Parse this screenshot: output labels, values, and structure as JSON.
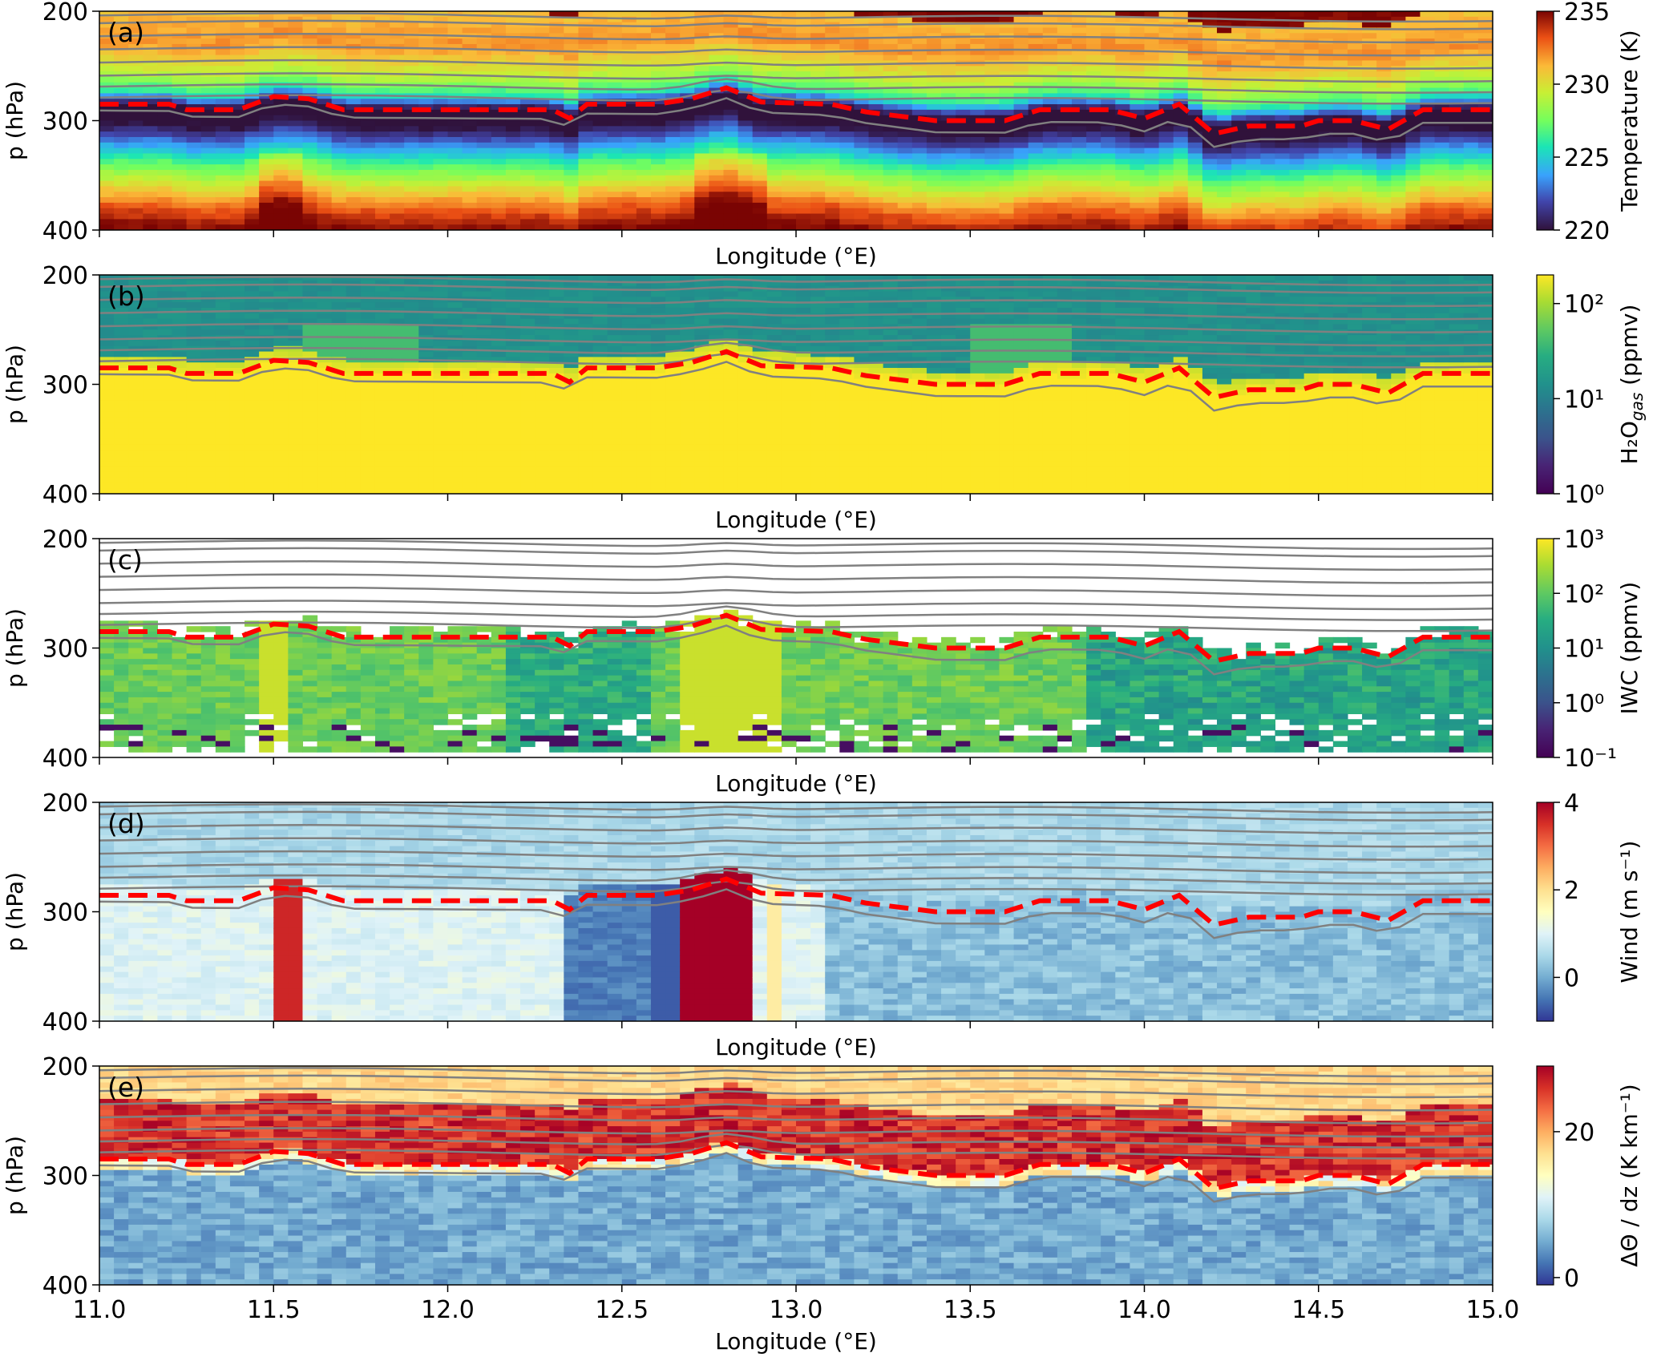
{
  "figure": {
    "xlabel": "Longitude (°E)",
    "ylabel": "p (hPa)",
    "x_ticks": [
      11.0,
      11.5,
      12.0,
      12.5,
      13.0,
      13.5,
      14.0,
      14.5,
      15.0
    ],
    "x_tick_labels": [
      "11.0",
      "11.5",
      "12.0",
      "12.5",
      "13.0",
      "13.5",
      "14.0",
      "14.5",
      "15.0"
    ],
    "y_ticks": [
      200,
      300,
      400
    ],
    "y_tick_labels": [
      "200",
      "300",
      "400"
    ]
  },
  "chart_data": [
    {
      "type": "heatmap",
      "panel_label": "(a)",
      "colorbar_label": "Temperature (K)",
      "colormap": "turbo",
      "colorbar_ticks": [
        "220",
        "225",
        "230",
        "235"
      ],
      "colorbar_tick_values": [
        220,
        225,
        230,
        235
      ],
      "colorbar_range": [
        220,
        235
      ],
      "colorbar_scale": "linear",
      "xlim": [
        11.0,
        15.0
      ],
      "ylim": [
        400,
        200
      ],
      "field_profile": [
        [
          200,
          231
        ],
        [
          230,
          232
        ],
        [
          260,
          229
        ],
        [
          275,
          226
        ],
        [
          285,
          221
        ],
        [
          292,
          219
        ],
        [
          305,
          220
        ],
        [
          320,
          223
        ],
        [
          340,
          227
        ],
        [
          360,
          230
        ],
        [
          380,
          233
        ],
        [
          400,
          235
        ]
      ]
    },
    {
      "type": "heatmap",
      "panel_label": "(b)",
      "colorbar_label": "H₂O",
      "colorbar_label_subscript": "gas",
      "colorbar_label_unit": "(ppmv)",
      "colormap": "viridis",
      "colorbar_ticks": [
        "10⁰",
        "10¹",
        "10²"
      ],
      "colorbar_tick_values": [
        1,
        10,
        100
      ],
      "colorbar_range": [
        1,
        200
      ],
      "colorbar_scale": "log",
      "xlim": [
        11.0,
        15.0
      ],
      "ylim": [
        400,
        200
      ]
    },
    {
      "type": "heatmap",
      "panel_label": "(c)",
      "colorbar_label": "IWC (ppmv)",
      "colormap": "viridis",
      "colorbar_ticks": [
        "10⁻¹",
        "10⁰",
        "10¹",
        "10²",
        "10³"
      ],
      "colorbar_tick_values": [
        0.1,
        1,
        10,
        100,
        1000
      ],
      "colorbar_range": [
        0.1,
        1000
      ],
      "colorbar_scale": "log",
      "xlim": [
        11.0,
        15.0
      ],
      "ylim": [
        400,
        200
      ]
    },
    {
      "type": "heatmap",
      "panel_label": "(d)",
      "colorbar_label": "Wind (m s⁻¹)",
      "colormap": "RdYlBu_r",
      "colorbar_ticks": [
        "0",
        "2",
        "4"
      ],
      "colorbar_tick_values": [
        0,
        2,
        4
      ],
      "colorbar_range": [
        -1,
        4
      ],
      "colorbar_scale": "linear",
      "xlim": [
        11.0,
        15.0
      ],
      "ylim": [
        400,
        200
      ]
    },
    {
      "type": "heatmap",
      "panel_label": "(e)",
      "colorbar_label": "ΔΘ / dz (K km⁻¹)",
      "colormap": "RdYlBu_r",
      "colorbar_ticks": [
        "0",
        "20"
      ],
      "colorbar_tick_values": [
        0,
        20
      ],
      "colorbar_range": [
        -1,
        29
      ],
      "colorbar_scale": "linear",
      "xlim": [
        11.0,
        15.0
      ],
      "ylim": [
        400,
        200
      ]
    }
  ],
  "overlays": {
    "tropopause_line": {
      "style": "red dashed",
      "color": "#ff0000",
      "points": [
        [
          11.0,
          285
        ],
        [
          11.2,
          285
        ],
        [
          11.25,
          290
        ],
        [
          11.4,
          290
        ],
        [
          11.5,
          278
        ],
        [
          11.6,
          280
        ],
        [
          11.7,
          290
        ],
        [
          12.0,
          290
        ],
        [
          12.3,
          290
        ],
        [
          12.35,
          298
        ],
        [
          12.4,
          285
        ],
        [
          12.6,
          285
        ],
        [
          12.7,
          280
        ],
        [
          12.8,
          270
        ],
        [
          12.9,
          283
        ],
        [
          13.1,
          285
        ],
        [
          13.2,
          292
        ],
        [
          13.4,
          300
        ],
        [
          13.6,
          300
        ],
        [
          13.7,
          290
        ],
        [
          13.9,
          290
        ],
        [
          14.0,
          298
        ],
        [
          14.1,
          285
        ],
        [
          14.2,
          312
        ],
        [
          14.3,
          305
        ],
        [
          14.45,
          305
        ],
        [
          14.5,
          300
        ],
        [
          14.6,
          300
        ],
        [
          14.7,
          308
        ],
        [
          14.8,
          290
        ],
        [
          15.0,
          290
        ]
      ]
    },
    "theta_contours": {
      "style": "gray solid",
      "color": "#808080",
      "levels_p_at_west": [
        203,
        210,
        222,
        234,
        246,
        258,
        268,
        278,
        301
      ]
    }
  }
}
